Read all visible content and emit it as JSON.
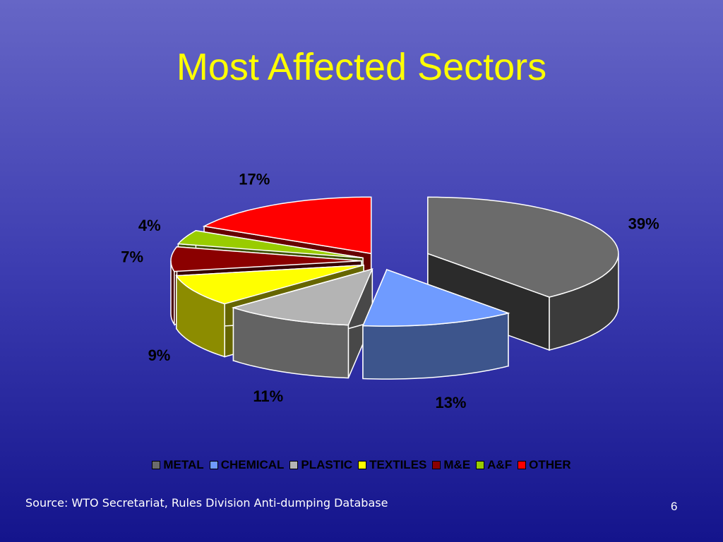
{
  "chart_data": {
    "type": "pie3d",
    "title": "Most Affected Sectors",
    "categories": [
      "METAL",
      "CHEMICAL",
      "PLASTIC",
      "TEXTILES",
      "M&E",
      "A&F",
      "OTHER"
    ],
    "values": [
      39,
      13,
      11,
      9,
      7,
      4,
      17
    ],
    "value_labels": [
      "39%",
      "13%",
      "11%",
      "9%",
      "7%",
      "4%",
      "17%"
    ],
    "colors": [
      "#6b6b6b",
      "#6f9bff",
      "#b4b4b4",
      "#ffff00",
      "#8b0000",
      "#99cc00",
      "#ff0000"
    ],
    "legend": "bottom"
  },
  "footer": {
    "source": "Source: WTO Secretariat, Rules Division Anti-dumping Database",
    "page_number": "6"
  }
}
